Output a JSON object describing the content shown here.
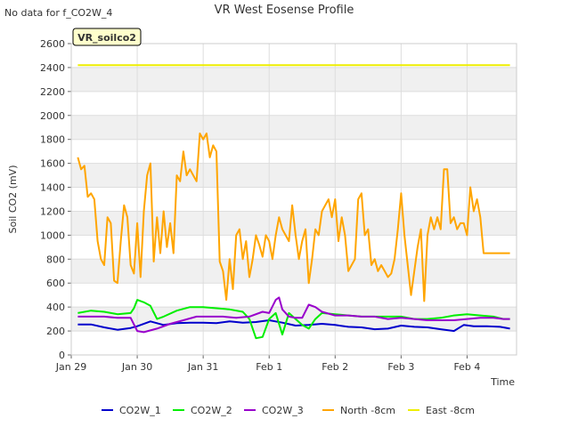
{
  "notice": "No data for f_CO2W_4",
  "chart_data": {
    "type": "line",
    "title": "VR West Eosense Profile",
    "badge": "VR_soilco2",
    "xlabel": "Time",
    "ylabel": "Soil CO2 (mV)",
    "ylim": [
      0,
      2600
    ],
    "yticks": [
      0,
      200,
      400,
      600,
      800,
      1000,
      1200,
      1400,
      1600,
      1800,
      2000,
      2200,
      2400,
      2600
    ],
    "xlim": [
      0,
      6.75
    ],
    "xticks": [
      {
        "value": 0,
        "label": "Jan 29"
      },
      {
        "value": 1,
        "label": "Jan 30"
      },
      {
        "value": 2,
        "label": "Jan 31"
      },
      {
        "value": 3,
        "label": "Feb 1"
      },
      {
        "value": 4,
        "label": "Feb 2"
      },
      {
        "value": 5,
        "label": "Feb 3"
      },
      {
        "value": 6,
        "label": "Feb 4"
      }
    ],
    "grid": true,
    "legend_position": "bottom",
    "series": [
      {
        "name": "CO2W_1",
        "color": "#0000cc",
        "x": [
          0.1,
          0.3,
          0.5,
          0.7,
          0.9,
          1.0,
          1.2,
          1.4,
          1.6,
          1.8,
          2.0,
          2.2,
          2.4,
          2.6,
          2.8,
          3.0,
          3.2,
          3.4,
          3.6,
          3.8,
          4.0,
          4.2,
          4.4,
          4.6,
          4.8,
          5.0,
          5.2,
          5.4,
          5.6,
          5.8,
          5.95,
          6.1,
          6.3,
          6.5,
          6.65
        ],
        "y": [
          255,
          255,
          230,
          210,
          225,
          240,
          280,
          250,
          265,
          270,
          270,
          265,
          280,
          270,
          275,
          290,
          270,
          245,
          250,
          260,
          250,
          235,
          230,
          215,
          220,
          245,
          235,
          230,
          215,
          200,
          250,
          240,
          240,
          235,
          220
        ]
      },
      {
        "name": "CO2W_2",
        "color": "#00ee00",
        "x": [
          0.1,
          0.3,
          0.5,
          0.7,
          0.9,
          0.95,
          1.0,
          1.1,
          1.2,
          1.3,
          1.4,
          1.6,
          1.8,
          2.0,
          2.2,
          2.4,
          2.6,
          2.7,
          2.8,
          2.9,
          3.0,
          3.1,
          3.2,
          3.3,
          3.4,
          3.5,
          3.6,
          3.7,
          3.8,
          4.0,
          4.2,
          4.4,
          4.6,
          4.8,
          5.0,
          5.2,
          5.4,
          5.6,
          5.8,
          6.0,
          6.2,
          6.4,
          6.55,
          6.65
        ],
        "y": [
          350,
          370,
          360,
          340,
          350,
          390,
          460,
          440,
          410,
          300,
          320,
          370,
          400,
          400,
          390,
          380,
          360,
          300,
          140,
          150,
          300,
          350,
          170,
          350,
          300,
          250,
          220,
          300,
          350,
          340,
          330,
          320,
          320,
          320,
          320,
          300,
          300,
          310,
          330,
          340,
          330,
          320,
          300,
          300
        ]
      },
      {
        "name": "CO2W_3",
        "color": "#9900cc",
        "x": [
          0.1,
          0.3,
          0.5,
          0.7,
          0.9,
          1.0,
          1.1,
          1.3,
          1.5,
          1.7,
          1.9,
          2.1,
          2.3,
          2.5,
          2.7,
          2.9,
          3.0,
          3.1,
          3.15,
          3.2,
          3.3,
          3.4,
          3.5,
          3.6,
          3.7,
          3.8,
          4.0,
          4.2,
          4.4,
          4.6,
          4.8,
          5.0,
          5.2,
          5.4,
          5.6,
          5.8,
          6.0,
          6.2,
          6.4,
          6.55,
          6.65
        ],
        "y": [
          320,
          320,
          320,
          310,
          310,
          200,
          190,
          220,
          260,
          290,
          320,
          320,
          320,
          310,
          320,
          360,
          350,
          460,
          480,
          380,
          320,
          310,
          310,
          420,
          400,
          360,
          330,
          330,
          320,
          320,
          300,
          310,
          300,
          290,
          290,
          290,
          300,
          310,
          310,
          300,
          300
        ]
      },
      {
        "name": "North -8cm",
        "color": "#ffa500",
        "x": [
          0.1,
          0.15,
          0.2,
          0.25,
          0.3,
          0.35,
          0.4,
          0.45,
          0.5,
          0.55,
          0.6,
          0.65,
          0.7,
          0.75,
          0.8,
          0.85,
          0.9,
          0.95,
          1.0,
          1.05,
          1.1,
          1.15,
          1.2,
          1.25,
          1.3,
          1.35,
          1.4,
          1.45,
          1.5,
          1.55,
          1.6,
          1.65,
          1.7,
          1.75,
          1.8,
          1.85,
          1.9,
          1.95,
          2.0,
          2.05,
          2.1,
          2.15,
          2.2,
          2.25,
          2.3,
          2.35,
          2.4,
          2.45,
          2.5,
          2.55,
          2.6,
          2.65,
          2.7,
          2.75,
          2.8,
          2.85,
          2.9,
          2.95,
          3.0,
          3.05,
          3.1,
          3.15,
          3.2,
          3.25,
          3.3,
          3.35,
          3.4,
          3.45,
          3.5,
          3.55,
          3.6,
          3.65,
          3.7,
          3.75,
          3.8,
          3.85,
          3.9,
          3.95,
          4.0,
          4.05,
          4.1,
          4.15,
          4.2,
          4.25,
          4.3,
          4.35,
          4.4,
          4.45,
          4.5,
          4.55,
          4.6,
          4.65,
          4.7,
          4.75,
          4.8,
          4.85,
          4.9,
          4.95,
          5.0,
          5.05,
          5.1,
          5.15,
          5.2,
          5.25,
          5.3,
          5.35,
          5.4,
          5.45,
          5.5,
          5.55,
          5.6,
          5.65,
          5.7,
          5.75,
          5.8,
          5.85,
          5.9,
          5.95,
          6.0,
          6.05,
          6.1,
          6.15,
          6.2,
          6.25,
          6.3,
          6.35,
          6.4,
          6.45,
          6.5,
          6.55,
          6.6,
          6.65
        ],
        "y": [
          1650,
          1550,
          1580,
          1320,
          1350,
          1300,
          950,
          800,
          750,
          1150,
          1100,
          620,
          600,
          950,
          1250,
          1150,
          750,
          680,
          1100,
          650,
          1200,
          1500,
          1600,
          780,
          1150,
          850,
          1200,
          900,
          1100,
          850,
          1500,
          1450,
          1700,
          1500,
          1550,
          1500,
          1450,
          1850,
          1800,
          1850,
          1650,
          1750,
          1700,
          780,
          700,
          460,
          800,
          550,
          1000,
          1050,
          800,
          950,
          650,
          800,
          1000,
          920,
          820,
          1000,
          950,
          800,
          1000,
          1150,
          1050,
          1000,
          950,
          1250,
          1000,
          800,
          950,
          1050,
          600,
          800,
          1050,
          1000,
          1200,
          1250,
          1300,
          1150,
          1300,
          950,
          1150,
          1000,
          700,
          750,
          800,
          1300,
          1350,
          1000,
          1050,
          750,
          800,
          700,
          750,
          700,
          650,
          680,
          800,
          1050,
          1350,
          1000,
          750,
          500,
          700,
          900,
          1050,
          450,
          1000,
          1150,
          1050,
          1150,
          1050,
          1550,
          1550,
          1100,
          1150,
          1050,
          1100,
          1100,
          1000,
          1400,
          1200,
          1300,
          1150,
          850,
          850,
          850,
          850,
          850,
          850,
          850,
          850,
          850
        ]
      },
      {
        "name": "East -8cm",
        "color": "#eeee00",
        "x": [
          0.1,
          6.65
        ],
        "y": [
          2420,
          2420
        ]
      }
    ]
  }
}
